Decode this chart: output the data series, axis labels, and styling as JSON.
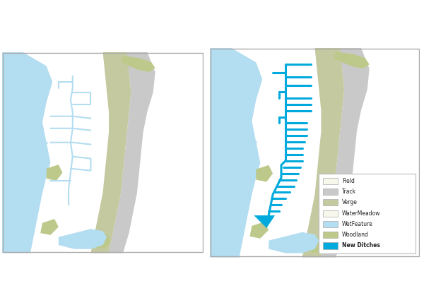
{
  "figsize": [
    6.0,
    4.32
  ],
  "dpi": 100,
  "field_color": "#f7f7ec",
  "track_color": "#c9c9c9",
  "verge_color": "#c5c9a0",
  "wet_feature_color": "#b3ddf0",
  "woodland_color": "#bdc98a",
  "new_ditches_color": "#00aadd",
  "border_color": "#aaaaaa",
  "legend_labels": [
    "Field",
    "Track",
    "Verge",
    "WaterMeadow",
    "WetFeature",
    "Woodland",
    "New Ditches"
  ],
  "legend_colors": [
    "#f7f7ec",
    "#c9c9c9",
    "#c5c9a0",
    "#f7f7ec",
    "#b3ddf0",
    "#bdc98a",
    "#00aadd"
  ]
}
